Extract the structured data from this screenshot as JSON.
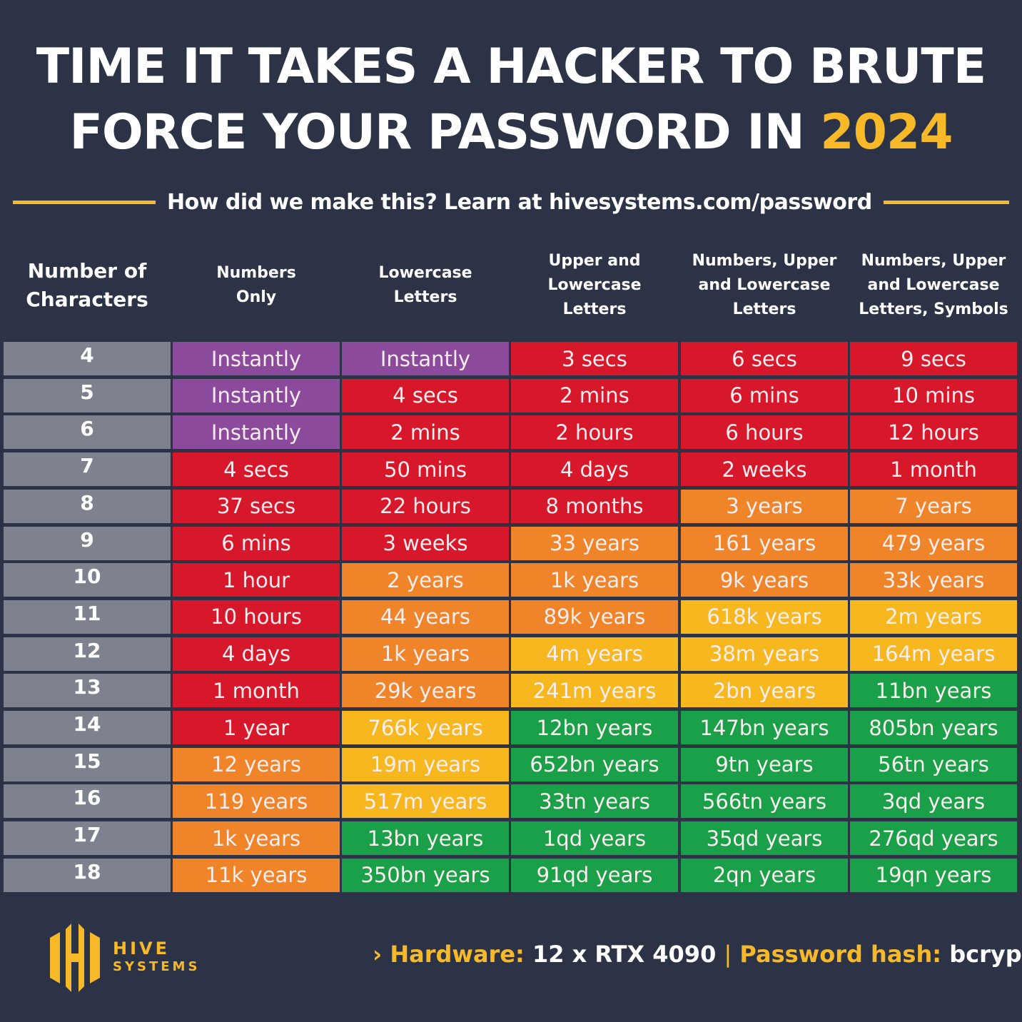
{
  "title": {
    "line1": "TIME IT TAKES A HACKER TO BRUTE",
    "line2": "FORCE YOUR PASSWORD IN ",
    "year": "2024"
  },
  "subtitle": "How did we make this? Learn at hivesystems.com/password",
  "colors": {
    "background": "#2d3346",
    "accent": "#f7b928",
    "instant": "#8b4a9c",
    "red": "#d7182a",
    "orange": "#ef8429",
    "yellow": "#f6b71f",
    "green": "#19a049",
    "row_label": "#7d828e"
  },
  "chart_data": {
    "type": "table",
    "title": "TIME IT TAKES A HACKER TO BRUTE FORCE YOUR PASSWORD IN 2024",
    "columns": [
      "Number of Characters",
      "Numbers Only",
      "Lowercase Letters",
      "Upper and Lowercase Letters",
      "Numbers, Upper and Lowercase Letters",
      "Numbers, Upper and Lowercase Letters, Symbols"
    ],
    "rows": [
      {
        "chars": "4",
        "values": [
          "Instantly",
          "Instantly",
          "3 secs",
          "6 secs",
          "9 secs"
        ],
        "levels": [
          "instant",
          "instant",
          "red",
          "red",
          "red"
        ]
      },
      {
        "chars": "5",
        "values": [
          "Instantly",
          "4 secs",
          "2 mins",
          "6 mins",
          "10 mins"
        ],
        "levels": [
          "instant",
          "red",
          "red",
          "red",
          "red"
        ]
      },
      {
        "chars": "6",
        "values": [
          "Instantly",
          "2 mins",
          "2 hours",
          "6 hours",
          "12 hours"
        ],
        "levels": [
          "instant",
          "red",
          "red",
          "red",
          "red"
        ]
      },
      {
        "chars": "7",
        "values": [
          "4 secs",
          "50 mins",
          "4 days",
          "2 weeks",
          "1 month"
        ],
        "levels": [
          "red",
          "red",
          "red",
          "red",
          "red"
        ]
      },
      {
        "chars": "8",
        "values": [
          "37 secs",
          "22 hours",
          "8 months",
          "3 years",
          "7 years"
        ],
        "levels": [
          "red",
          "red",
          "red",
          "orange",
          "orange"
        ]
      },
      {
        "chars": "9",
        "values": [
          "6 mins",
          "3 weeks",
          "33 years",
          "161 years",
          "479 years"
        ],
        "levels": [
          "red",
          "red",
          "orange",
          "orange",
          "orange"
        ]
      },
      {
        "chars": "10",
        "values": [
          "1 hour",
          "2 years",
          "1k years",
          "9k years",
          "33k years"
        ],
        "levels": [
          "red",
          "orange",
          "orange",
          "orange",
          "orange"
        ]
      },
      {
        "chars": "11",
        "values": [
          "10 hours",
          "44 years",
          "89k years",
          "618k years",
          "2m years"
        ],
        "levels": [
          "red",
          "orange",
          "orange",
          "yellow",
          "yellow"
        ]
      },
      {
        "chars": "12",
        "values": [
          "4 days",
          "1k years",
          "4m years",
          "38m years",
          "164m years"
        ],
        "levels": [
          "red",
          "orange",
          "yellow",
          "yellow",
          "yellow"
        ]
      },
      {
        "chars": "13",
        "values": [
          "1 month",
          "29k years",
          "241m years",
          "2bn years",
          "11bn years"
        ],
        "levels": [
          "red",
          "orange",
          "yellow",
          "yellow",
          "green"
        ]
      },
      {
        "chars": "14",
        "values": [
          "1 year",
          "766k years",
          "12bn years",
          "147bn years",
          "805bn years"
        ],
        "levels": [
          "red",
          "yellow",
          "green",
          "green",
          "green"
        ]
      },
      {
        "chars": "15",
        "values": [
          "12 years",
          "19m years",
          "652bn years",
          "9tn years",
          "56tn years"
        ],
        "levels": [
          "orange",
          "yellow",
          "green",
          "green",
          "green"
        ]
      },
      {
        "chars": "16",
        "values": [
          "119 years",
          "517m years",
          "33tn years",
          "566tn years",
          "3qd years"
        ],
        "levels": [
          "orange",
          "yellow",
          "green",
          "green",
          "green"
        ]
      },
      {
        "chars": "17",
        "values": [
          "1k years",
          "13bn years",
          "1qd years",
          "35qd years",
          "276qd years"
        ],
        "levels": [
          "orange",
          "green",
          "green",
          "green",
          "green"
        ]
      },
      {
        "chars": "18",
        "values": [
          "11k years",
          "350bn years",
          "91qd years",
          "2qn years",
          "19qn years"
        ],
        "levels": [
          "orange",
          "green",
          "green",
          "green",
          "green"
        ]
      }
    ]
  },
  "footer": {
    "hardware_label": "Hardware:",
    "hardware": "12 x RTX 4090",
    "separator": "|",
    "hash_label": "Password hash:",
    "hash": "bcrypt"
  },
  "logo": {
    "line1": "HIVE",
    "line2": "SYSTEMS"
  }
}
